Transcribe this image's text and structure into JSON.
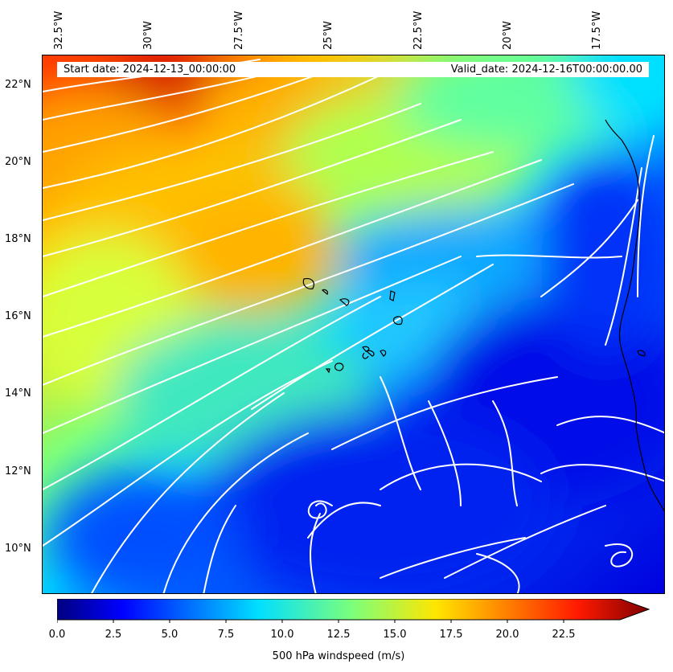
{
  "map": {
    "start_date": "Start date: 2024-12-13_00:00:00",
    "valid_date": "Valid_date: 2024-12-16T00:00:00.00",
    "lon_labels": [
      "32.5°W",
      "30°W",
      "27.5°W",
      "25°W",
      "22.5°W",
      "20°W",
      "17.5°W"
    ],
    "lat_labels": [
      "22°N",
      "20°N",
      "18°N",
      "16°N",
      "14°N",
      "12°N",
      "10°N"
    ],
    "field": "500 hPa windspeed (m/s)",
    "colormap": "jet",
    "streamline_color": "#ffffff",
    "coastline_color": "#000000"
  },
  "colorbar": {
    "title": "500 hPa windspeed (m/s)",
    "ticks": [
      "0.0",
      "2.5",
      "5.0",
      "7.5",
      "10.0",
      "12.5",
      "15.0",
      "17.5",
      "20.0",
      "22.5"
    ],
    "range": [
      0,
      25
    ],
    "extend": "max"
  }
}
